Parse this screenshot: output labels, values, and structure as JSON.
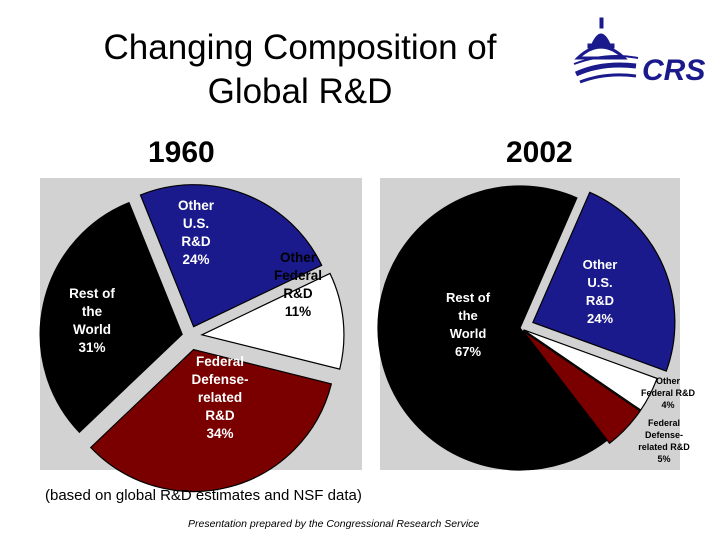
{
  "title_line1": "Changing Composition of",
  "title_line2": "Global R&D",
  "logo": {
    "text": "CRS",
    "color": "#1a1a8c",
    "icon": "capitol-dome-icon"
  },
  "note": "(based on global R&D estimates and NSF data)",
  "credit": "Presentation prepared by the Congressional Research Service",
  "chart_data": [
    {
      "type": "pie",
      "title": "1960",
      "slices": [
        {
          "key": "other_us",
          "label_lines": [
            "Other",
            "U.S.",
            "R&D"
          ],
          "value": 24,
          "value_label": "24%",
          "color": "#1a1a8c",
          "text_color": "#ffffff"
        },
        {
          "key": "other_federal",
          "label_lines": [
            "Other",
            "Federal",
            "R&D"
          ],
          "value": 11,
          "value_label": "11%",
          "color": "#ffffff",
          "text_color": "#000000"
        },
        {
          "key": "federal_defense",
          "label_lines": [
            "Federal",
            "Defense-",
            "related",
            "R&D"
          ],
          "value": 34,
          "value_label": "34%",
          "color": "#7a0000",
          "text_color": "#ffffff"
        },
        {
          "key": "rest_world",
          "label_lines": [
            "Rest of",
            "the",
            "World"
          ],
          "value": 31,
          "value_label": "31%",
          "color": "#000000",
          "text_color": "#ffffff"
        }
      ]
    },
    {
      "type": "pie",
      "title": "2002",
      "slices": [
        {
          "key": "other_us",
          "label_lines": [
            "Other",
            "U.S.",
            "R&D"
          ],
          "value": 24,
          "value_label": "24%",
          "color": "#1a1a8c",
          "text_color": "#ffffff"
        },
        {
          "key": "other_federal",
          "label_lines": [
            "Other",
            "Federal R&D"
          ],
          "value": 4,
          "value_label": "4%",
          "color": "#ffffff",
          "text_color": "#000000"
        },
        {
          "key": "federal_defense",
          "label_lines": [
            "Federal",
            "Defense-",
            "related R&D"
          ],
          "value": 5,
          "value_label": "5%",
          "color": "#7a0000",
          "text_color": "#000000"
        },
        {
          "key": "rest_world",
          "label_lines": [
            "Rest of",
            "the",
            "World"
          ],
          "value": 67,
          "value_label": "67%",
          "color": "#000000",
          "text_color": "#ffffff"
        }
      ]
    }
  ]
}
